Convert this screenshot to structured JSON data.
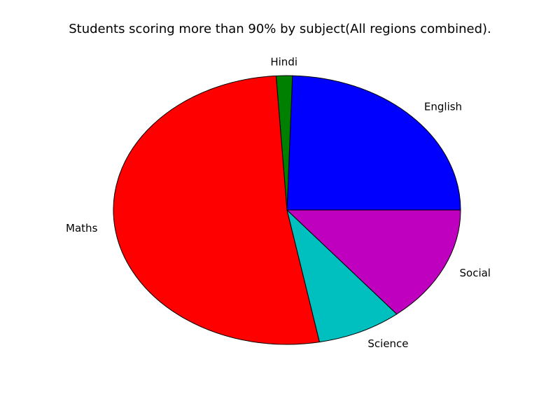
{
  "chart_data": {
    "type": "pie",
    "title": "Students scoring more than 90% by subject(All regions combined).",
    "slices": [
      {
        "label": "English",
        "value": 24.5,
        "color": "#0000ff"
      },
      {
        "label": "Hindi",
        "value": 1.5,
        "color": "#008000"
      },
      {
        "label": "Maths",
        "value": 52.0,
        "color": "#ff0000"
      },
      {
        "label": "Science",
        "value": 7.9,
        "color": "#00bfbf"
      },
      {
        "label": "Social",
        "value": 14.1,
        "color": "#bf00bf"
      }
    ],
    "start_angle_deg": 0,
    "direction": "counterclockwise",
    "edge_color": "#000000"
  }
}
